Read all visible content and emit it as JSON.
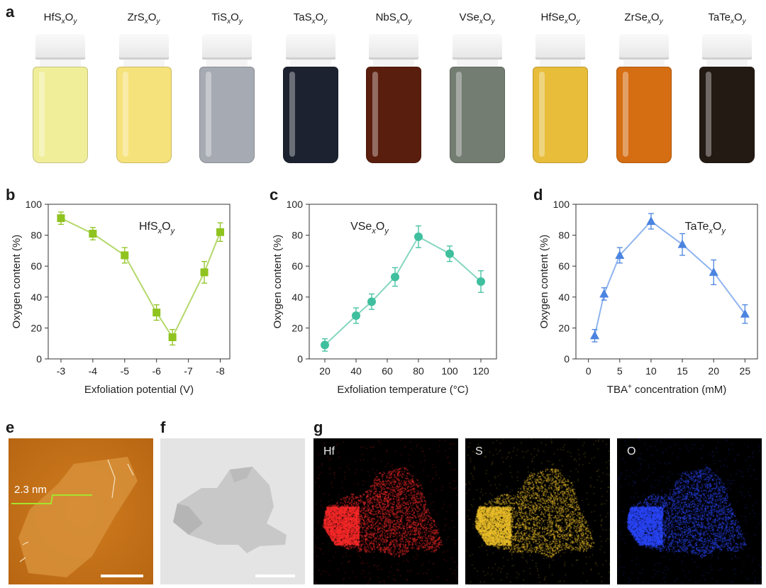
{
  "panel_letters": {
    "a": "a",
    "b": "b",
    "c": "c",
    "d": "d",
    "e": "e",
    "f": "f",
    "g": "g"
  },
  "vials": [
    {
      "base": "HfS",
      "mid": "O",
      "label_parts": [
        "HfS",
        "x",
        "O",
        "y"
      ],
      "color": "#f1ee9a"
    },
    {
      "base": "ZrS",
      "label_parts": [
        "ZrS",
        "x",
        "O",
        "y"
      ],
      "color": "#f6e27a"
    },
    {
      "base": "TiS",
      "label_parts": [
        "TiS",
        "x",
        "O",
        "y"
      ],
      "color": "#a6abb3"
    },
    {
      "base": "TaS",
      "label_parts": [
        "TaS",
        "x",
        "O",
        "y"
      ],
      "color": "#1d2231"
    },
    {
      "base": "NbS",
      "label_parts": [
        "NbS",
        "x",
        "O",
        "y"
      ],
      "color": "#5a1e0e"
    },
    {
      "base": "VSe",
      "label_parts": [
        "VSe",
        "x",
        "O",
        "y"
      ],
      "color": "#737d72"
    },
    {
      "base": "HfSe",
      "label_parts": [
        "HfSe",
        "x",
        "O",
        "y"
      ],
      "color": "#e7bd3a"
    },
    {
      "base": "ZrSe",
      "label_parts": [
        "ZrSe",
        "x",
        "O",
        "y"
      ],
      "color": "#d56d12"
    },
    {
      "base": "TaTe",
      "label_parts": [
        "TaTe",
        "x",
        "O",
        "y"
      ],
      "color": "#241a14"
    }
  ],
  "chart_data": [
    {
      "type": "line",
      "panel": "b",
      "annotation": "HfSxOy",
      "annotation_parts": [
        "HfS",
        "x",
        "O",
        "y"
      ],
      "xlabel": "Exfoliation potential (V)",
      "ylabel": "Oxygen content (%)",
      "x_ticks": [
        "-3",
        "-4",
        "-5",
        "-6",
        "-7",
        "-8"
      ],
      "x_tick_values": [
        -3,
        -4,
        -5,
        -6,
        -7,
        -8
      ],
      "xlim": [
        -2.6,
        -8.3
      ],
      "ylim": [
        0,
        100
      ],
      "y_ticks": [
        "0",
        "20",
        "40",
        "60",
        "80",
        "100"
      ],
      "marker": "square",
      "color": "#8fc31f",
      "line_color": "#b4d86a",
      "x": [
        -3,
        -4,
        -5,
        -6,
        -6.5,
        -7.5,
        -8
      ],
      "y": [
        91,
        81,
        67,
        30,
        14,
        56,
        82
      ],
      "err": [
        4,
        4,
        5,
        5,
        5,
        7,
        6
      ]
    },
    {
      "type": "line",
      "panel": "c",
      "annotation": "VSexOy",
      "annotation_parts": [
        "VSe",
        "x",
        "O",
        "y"
      ],
      "xlabel": "Exfoliation temperature (°C)",
      "ylabel": "Oxygen content (%)",
      "x_ticks": [
        "20",
        "40",
        "60",
        "80",
        "100",
        "120"
      ],
      "x_tick_values": [
        20,
        40,
        60,
        80,
        100,
        120
      ],
      "xlim": [
        10,
        130
      ],
      "ylim": [
        0,
        100
      ],
      "y_ticks": [
        "0",
        "20",
        "40",
        "60",
        "80",
        "100"
      ],
      "marker": "circle",
      "color": "#3fbf9e",
      "line_color": "#86d6c0",
      "x": [
        20,
        40,
        50,
        65,
        80,
        100,
        120
      ],
      "y": [
        9,
        28,
        37,
        53,
        79,
        68,
        50
      ],
      "err": [
        4,
        5,
        5,
        6,
        7,
        5,
        7
      ]
    },
    {
      "type": "line",
      "panel": "d",
      "annotation": "TaTexOy",
      "annotation_parts": [
        "TaTe",
        "x",
        "O",
        "y"
      ],
      "xlabel_parts": [
        "TBA",
        "+",
        " concentration (mM)"
      ],
      "ylabel": "Oxygen content (%)",
      "x_ticks": [
        "0",
        "5",
        "10",
        "15",
        "20",
        "25"
      ],
      "x_tick_values": [
        0,
        5,
        10,
        15,
        20,
        25
      ],
      "xlim": [
        -2,
        27
      ],
      "ylim": [
        0,
        100
      ],
      "y_ticks": [
        "0",
        "20",
        "40",
        "60",
        "80",
        "100"
      ],
      "marker": "triangle",
      "color": "#4b84e0",
      "line_color": "#8fb4ef",
      "x": [
        1,
        2.5,
        5,
        10,
        15,
        20,
        25
      ],
      "y": [
        15,
        42,
        67,
        89,
        74,
        56,
        29
      ],
      "err": [
        4,
        4,
        5,
        5,
        7,
        8,
        6
      ]
    }
  ],
  "panel_e": {
    "thickness_label": "2.3 nm",
    "colors": {
      "bg": "#c9761b",
      "profile": "#a6e22e"
    }
  },
  "panel_g": {
    "maps": [
      {
        "element": "Hf",
        "color": "#ff2a2a"
      },
      {
        "element": "S",
        "color": "#f0c22a"
      },
      {
        "element": "O",
        "color": "#2b48ff"
      }
    ]
  }
}
